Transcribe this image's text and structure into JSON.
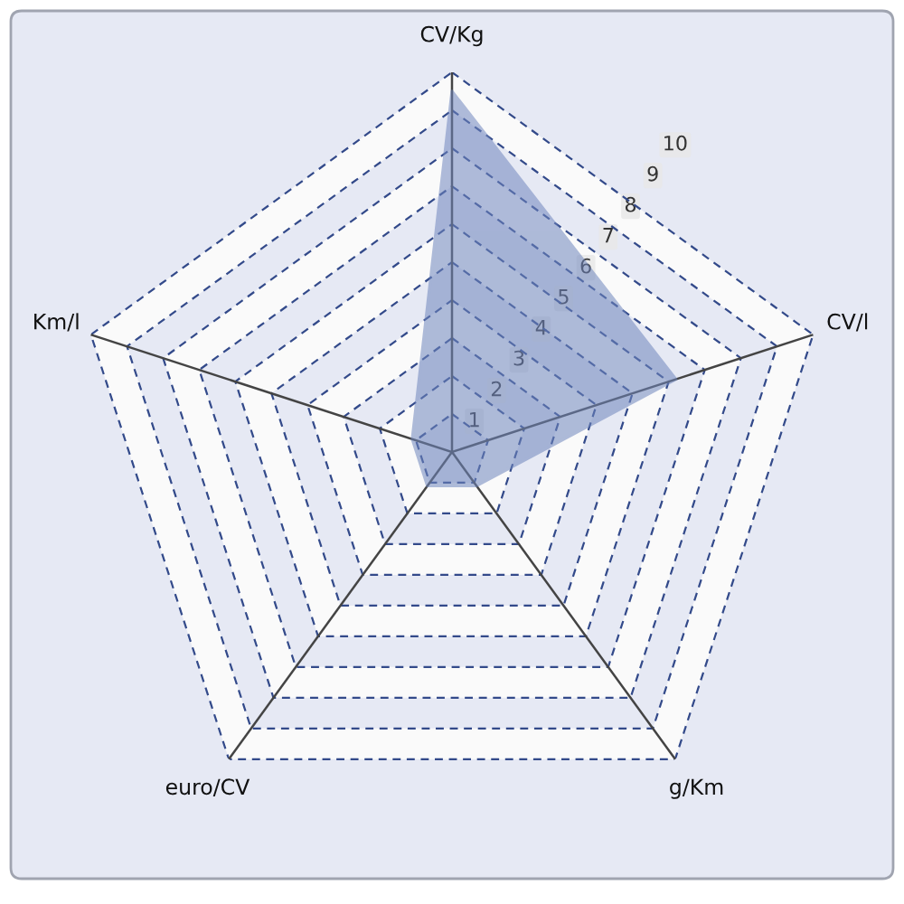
{
  "chart_data": {
    "type": "radar",
    "categories": [
      "CV/Kg",
      "CV/l",
      "g/Km",
      "euro/CV",
      "Km/l"
    ],
    "series": [
      {
        "color": "#6f86bd",
        "values": [
          9.5,
          6.2,
          1.1,
          1.1,
          1.1
        ]
      }
    ],
    "ylim": [
      0,
      10
    ],
    "yticks": [
      1,
      2,
      3,
      4,
      5,
      6,
      7,
      8,
      9,
      10
    ],
    "grid": true
  }
}
